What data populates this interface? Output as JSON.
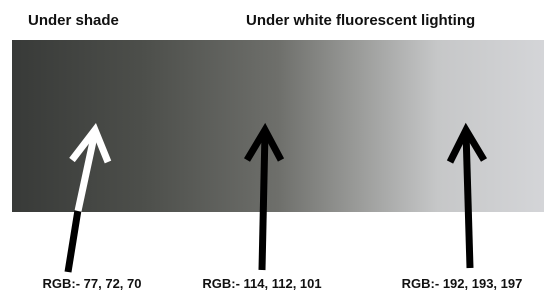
{
  "headings": {
    "left": "Under shade",
    "right": "Under white fluorescent lighting"
  },
  "labels": [
    "RGB:- 77, 72, 70",
    "RGB:- 114, 112, 101",
    "RGB:- 192, 193, 197"
  ]
}
